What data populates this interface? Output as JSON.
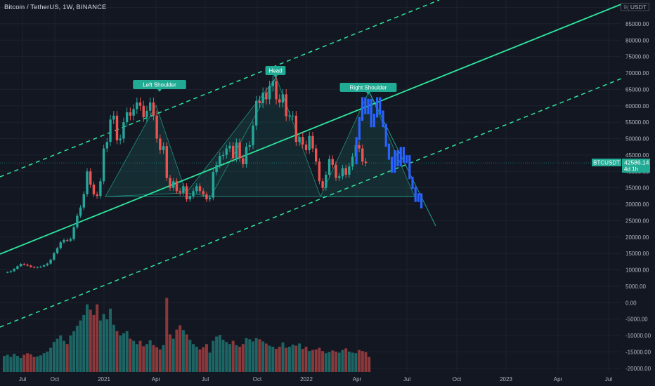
{
  "header": {
    "title": "Bitcoin / TetherUS, 1W, BINANCE",
    "currency": "USDT",
    "currency_icon": "close-icon"
  },
  "price_tag": {
    "symbol": "BTCUSDT",
    "price": "42586.14",
    "countdown": "4d 1h"
  },
  "colors": {
    "background": "#131722",
    "up": "#26a69a",
    "down": "#ef5350",
    "projection": "#2962ff",
    "channel": "#2ee59d",
    "pattern_fill": "#22ab94"
  },
  "chart_data": {
    "type": "candlestick",
    "timeframe": "1W",
    "x_ticks": [
      "Jul",
      "Oct",
      "2021",
      "Apr",
      "Jul",
      "Oct",
      "2022",
      "Apr",
      "Jul",
      "Oct",
      "2023",
      "Apr",
      "Jul"
    ],
    "y_ticks": [
      "90000.00",
      "85000.00",
      "80000.00",
      "75000.00",
      "70000.00",
      "65000.00",
      "60000.00",
      "55000.00",
      "50000.00",
      "45000.00",
      "40000.00",
      "35000.00",
      "30000.00",
      "25000.00",
      "20000.00",
      "15000.00",
      "10000.00",
      "5000.00",
      "0.00",
      "-5000.00",
      "-10000.00",
      "-15000.00",
      "-20000.00"
    ],
    "y_range": [
      -22000,
      94000
    ],
    "last_price": 42586.14,
    "annotations": [
      "Left Shoulder",
      "Head",
      "Right Shoulder"
    ],
    "price_path": [
      9200,
      9300,
      9600,
      10300,
      11100,
      11800,
      11600,
      11300,
      10900,
      10700,
      10800,
      11000,
      11400,
      11900,
      13100,
      15100,
      16600,
      18400,
      19100,
      18900,
      19400,
      23000,
      26500,
      29000,
      33100,
      40000,
      36000,
      33000,
      32500,
      37000,
      47000,
      49000,
      55800,
      57000,
      49500,
      50000,
      55000,
      58000,
      57000,
      59000,
      61000,
      60000,
      56500,
      58500,
      61000,
      57000,
      50000,
      46500,
      47700,
      38000,
      35000,
      37000,
      34000,
      33500,
      35500,
      31500,
      32500,
      34000,
      35500,
      34000,
      33000,
      31500,
      32000,
      39800,
      42000,
      44700,
      45000,
      47000,
      47800,
      44000,
      48800,
      44000,
      42200,
      47500,
      48000,
      54000,
      61500,
      60800,
      64000,
      62000,
      66000,
      67500,
      62000,
      61000,
      63500,
      56800,
      57000,
      57000,
      49000,
      50500,
      48200,
      46500,
      50800,
      47000,
      43000,
      37000,
      35000,
      39000,
      43800,
      42000,
      38000,
      38500,
      41000,
      39000,
      41500,
      44500,
      48000,
      47000,
      43000,
      42586
    ],
    "projection_path": [
      42586,
      50000,
      56000,
      62000,
      58000,
      61500,
      54000,
      57000,
      62000,
      58000,
      54000,
      48000,
      44000,
      40000,
      46000,
      42000,
      47000,
      43000,
      44500,
      38000,
      35000,
      31000,
      33000,
      29000
    ],
    "volume_scale": [
      0,
      17000
    ],
    "volume_path": [
      3000,
      3200,
      2800,
      3400,
      3000,
      2600,
      3200,
      3500,
      3300,
      2800,
      2900,
      3100,
      3500,
      3800,
      4500,
      5600,
      6200,
      6800,
      5800,
      5200,
      6800,
      7600,
      8600,
      9600,
      10600,
      12600,
      11600,
      10600,
      12600,
      9600,
      10800,
      9800,
      11800,
      8800,
      7600,
      6800,
      7200,
      7600,
      6200,
      5800,
      5200,
      5800,
      4800,
      5200,
      5900,
      5000,
      4600,
      4200,
      5000,
      13800,
      7000,
      6200,
      7900,
      8700,
      7800,
      7000,
      6000,
      5200,
      4700,
      4200,
      4600,
      5200,
      3600,
      5800,
      6600,
      6900,
      6000,
      5600,
      5200,
      5800,
      5000,
      4700,
      5200,
      6300,
      6100,
      5700,
      6300,
      6100,
      5700,
      5300,
      4900,
      4700,
      4300,
      4700,
      5500,
      4500,
      4700,
      5100,
      4900,
      5300,
      4300,
      4700,
      3900,
      4100,
      4200,
      4500,
      3900,
      3500,
      3700,
      4000,
      3800,
      3600,
      4100,
      4400,
      3800,
      3600,
      3500,
      4100,
      3900,
      3700,
      2800
    ]
  }
}
